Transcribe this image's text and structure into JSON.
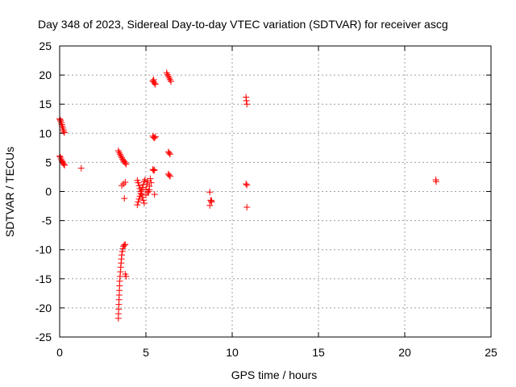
{
  "chart_data": {
    "type": "scatter",
    "title": "Day 348 of 2023, Sidereal Day-to-day VTEC variation (SDTVAR) for receiver ascg",
    "xlabel": "GPS time / hours",
    "ylabel": "SDTVAR / TECUs",
    "xlim": [
      0,
      25
    ],
    "ylim": [
      -25,
      25
    ],
    "x_ticks": [
      "0",
      "5",
      "10",
      "15",
      "20",
      "25"
    ],
    "y_ticks": [
      "25",
      "20",
      "15",
      "10",
      "5",
      "0",
      "-5",
      "-10",
      "-15",
      "-20",
      "-25"
    ],
    "grid": true,
    "marker": "+",
    "series_color": "#ff0000",
    "points": [
      [
        0.0,
        12.5
      ],
      [
        0.03,
        12.3
      ],
      [
        0.06,
        12.1
      ],
      [
        0.09,
        11.8
      ],
      [
        0.12,
        11.5
      ],
      [
        0.15,
        11.2
      ],
      [
        0.18,
        10.9
      ],
      [
        0.21,
        10.6
      ],
      [
        0.24,
        10.3
      ],
      [
        0.27,
        10.1
      ],
      [
        0.0,
        6.1
      ],
      [
        0.04,
        5.9
      ],
      [
        0.08,
        5.6
      ],
      [
        0.12,
        5.3
      ],
      [
        0.16,
        5.1
      ],
      [
        0.2,
        4.9
      ],
      [
        0.24,
        4.7
      ],
      [
        0.28,
        4.5
      ],
      [
        1.25,
        4.0
      ],
      [
        3.4,
        7.0
      ],
      [
        3.45,
        6.7
      ],
      [
        3.5,
        6.4
      ],
      [
        3.55,
        6.1
      ],
      [
        3.6,
        5.8
      ],
      [
        3.65,
        5.5
      ],
      [
        3.7,
        5.3
      ],
      [
        3.75,
        5.1
      ],
      [
        3.8,
        4.9
      ],
      [
        3.85,
        4.7
      ],
      [
        3.6,
        1.0
      ],
      [
        3.7,
        1.3
      ],
      [
        3.8,
        1.6
      ],
      [
        3.75,
        -1.2
      ],
      [
        3.4,
        -21.8
      ],
      [
        3.41,
        -21.0
      ],
      [
        3.42,
        -20.2
      ],
      [
        3.43,
        -19.4
      ],
      [
        3.44,
        -18.6
      ],
      [
        3.45,
        -17.8
      ],
      [
        3.46,
        -17.0
      ],
      [
        3.47,
        -16.2
      ],
      [
        3.48,
        -15.4
      ],
      [
        3.5,
        -14.6
      ],
      [
        3.52,
        -13.8
      ],
      [
        3.54,
        -13.0
      ],
      [
        3.56,
        -12.3
      ],
      [
        3.58,
        -11.6
      ],
      [
        3.6,
        -10.9
      ],
      [
        3.63,
        -10.3
      ],
      [
        3.66,
        -9.8
      ],
      [
        3.7,
        -9.4
      ],
      [
        3.75,
        -9.2
      ],
      [
        3.8,
        -9.1
      ],
      [
        3.8,
        -14.2
      ],
      [
        3.85,
        -14.6
      ],
      [
        4.5,
        -2.3
      ],
      [
        4.55,
        -1.8
      ],
      [
        4.6,
        -1.3
      ],
      [
        4.65,
        -0.8
      ],
      [
        4.7,
        -0.3
      ],
      [
        4.75,
        0.2
      ],
      [
        4.8,
        0.7
      ],
      [
        4.85,
        1.2
      ],
      [
        4.9,
        1.7
      ],
      [
        4.95,
        2.0
      ],
      [
        4.5,
        1.9
      ],
      [
        4.55,
        1.5
      ],
      [
        4.6,
        1.0
      ],
      [
        4.65,
        0.5
      ],
      [
        4.7,
        0.0
      ],
      [
        4.75,
        -0.5
      ],
      [
        4.8,
        -1.0
      ],
      [
        4.85,
        -1.5
      ],
      [
        4.9,
        -2.0
      ],
      [
        5.0,
        0.4
      ],
      [
        5.05,
        1.2
      ],
      [
        5.1,
        1.8
      ],
      [
        5.15,
        0.0
      ],
      [
        5.2,
        0.9
      ],
      [
        5.25,
        2.2
      ],
      [
        5.3,
        1.5
      ],
      [
        5.0,
        -0.6
      ],
      [
        5.1,
        -0.2
      ],
      [
        5.2,
        0.3
      ],
      [
        5.5,
        -0.5
      ],
      [
        5.4,
        19.0
      ],
      [
        5.45,
        18.8
      ],
      [
        5.5,
        18.6
      ],
      [
        5.55,
        18.4
      ],
      [
        5.45,
        19.2
      ],
      [
        5.4,
        9.5
      ],
      [
        5.45,
        9.3
      ],
      [
        5.5,
        9.2
      ],
      [
        5.55,
        9.4
      ],
      [
        5.4,
        3.8
      ],
      [
        5.45,
        3.6
      ],
      [
        5.5,
        3.7
      ],
      [
        6.2,
        20.4
      ],
      [
        6.25,
        20.1
      ],
      [
        6.3,
        19.8
      ],
      [
        6.35,
        19.5
      ],
      [
        6.4,
        19.2
      ],
      [
        6.45,
        18.9
      ],
      [
        6.3,
        6.8
      ],
      [
        6.35,
        6.6
      ],
      [
        6.4,
        6.4
      ],
      [
        6.3,
        3.0
      ],
      [
        6.35,
        2.8
      ],
      [
        6.4,
        2.6
      ],
      [
        8.7,
        -0.1
      ],
      [
        8.75,
        -1.5
      ],
      [
        8.8,
        -1.8
      ],
      [
        8.7,
        -2.4
      ],
      [
        8.8,
        -1.6
      ],
      [
        10.8,
        16.2
      ],
      [
        10.82,
        15.6
      ],
      [
        10.85,
        15.0
      ],
      [
        10.8,
        1.3
      ],
      [
        10.85,
        1.1
      ],
      [
        10.85,
        -2.7
      ],
      [
        21.8,
        2.0
      ],
      [
        21.82,
        1.7
      ]
    ]
  }
}
